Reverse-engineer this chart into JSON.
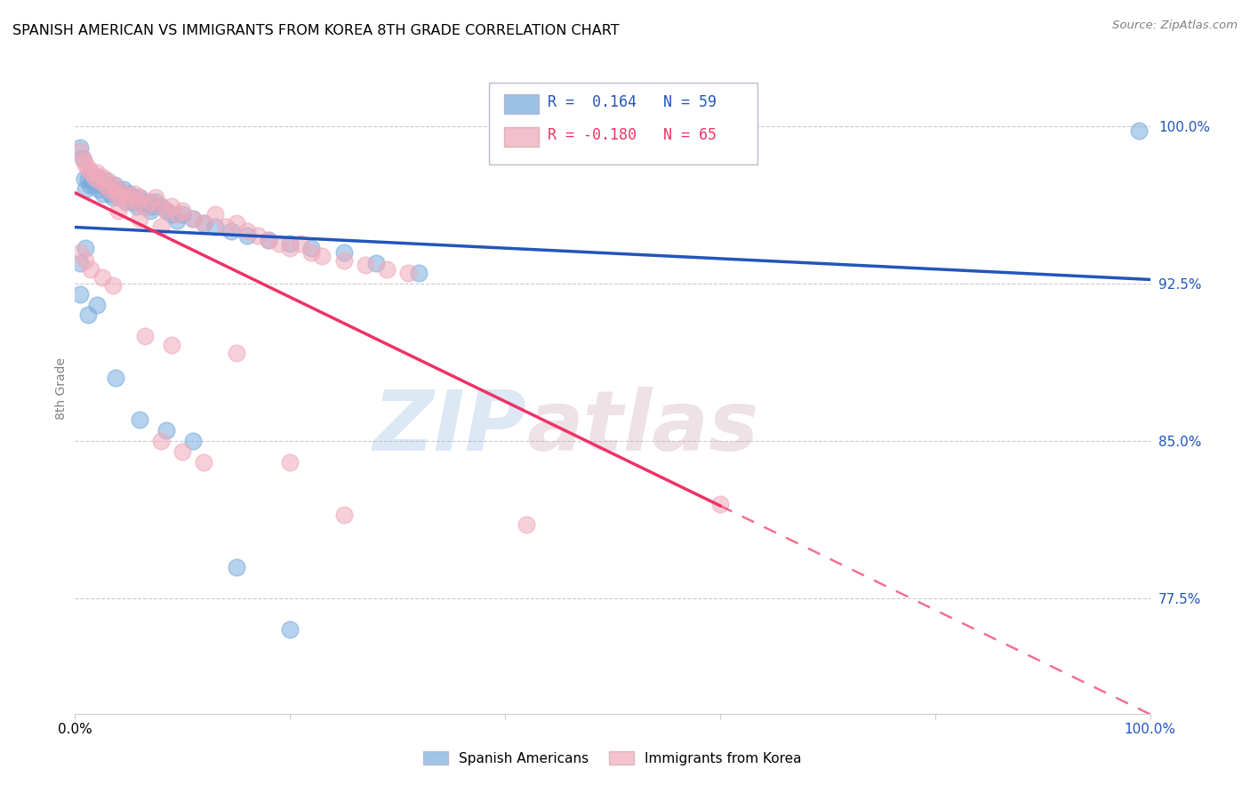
{
  "title": "SPANISH AMERICAN VS IMMIGRANTS FROM KOREA 8TH GRADE CORRELATION CHART",
  "source": "Source: ZipAtlas.com",
  "ylabel": "8th Grade",
  "xlim": [
    0.0,
    1.0
  ],
  "ylim": [
    0.72,
    1.03
  ],
  "yticks": [
    0.775,
    0.85,
    0.925,
    1.0
  ],
  "ytick_labels": [
    "77.5%",
    "85.0%",
    "92.5%",
    "100.0%"
  ],
  "xticks": [
    0.0,
    0.2,
    0.4,
    0.6,
    0.8,
    1.0
  ],
  "xtick_labels": [
    "0.0%",
    "",
    "",
    "",
    "",
    "100.0%"
  ],
  "blue_R": 0.164,
  "blue_N": 59,
  "pink_R": -0.18,
  "pink_N": 65,
  "blue_color": "#7aaddd",
  "pink_color": "#f0aabb",
  "blue_line_color": "#2255bb",
  "pink_line_color": "#ee3366",
  "watermark_zip": "ZIP",
  "watermark_atlas": "atlas",
  "blue_scatter_x": [
    0.005,
    0.007,
    0.009,
    0.01,
    0.012,
    0.014,
    0.015,
    0.016,
    0.018,
    0.02,
    0.022,
    0.024,
    0.025,
    0.026,
    0.028,
    0.03,
    0.031,
    0.033,
    0.034,
    0.035,
    0.037,
    0.038,
    0.04,
    0.041,
    0.043,
    0.045,
    0.046,
    0.048,
    0.05,
    0.052,
    0.054,
    0.056,
    0.058,
    0.06,
    0.063,
    0.065,
    0.068,
    0.07,
    0.072,
    0.075,
    0.08,
    0.085,
    0.09,
    0.095,
    0.1,
    0.11,
    0.12,
    0.13,
    0.145,
    0.16,
    0.18,
    0.2,
    0.22,
    0.25,
    0.28,
    0.32,
    0.005,
    0.01,
    0.99
  ],
  "blue_scatter_y": [
    0.99,
    0.985,
    0.975,
    0.97,
    0.975,
    0.972,
    0.978,
    0.974,
    0.972,
    0.976,
    0.97,
    0.974,
    0.972,
    0.968,
    0.974,
    0.97,
    0.972,
    0.968,
    0.97,
    0.966,
    0.972,
    0.968,
    0.97,
    0.966,
    0.968,
    0.97,
    0.966,
    0.964,
    0.968,
    0.966,
    0.964,
    0.966,
    0.962,
    0.966,
    0.964,
    0.962,
    0.964,
    0.96,
    0.962,
    0.964,
    0.962,
    0.96,
    0.958,
    0.955,
    0.958,
    0.956,
    0.954,
    0.952,
    0.95,
    0.948,
    0.946,
    0.944,
    0.942,
    0.94,
    0.935,
    0.93,
    0.935,
    0.942,
    0.998
  ],
  "blue_scatter_x2": [
    0.005,
    0.012,
    0.02,
    0.038,
    0.06,
    0.085,
    0.11,
    0.15,
    0.2
  ],
  "blue_scatter_y2": [
    0.92,
    0.91,
    0.915,
    0.88,
    0.86,
    0.855,
    0.85,
    0.79,
    0.76
  ],
  "pink_scatter_x": [
    0.005,
    0.008,
    0.01,
    0.012,
    0.015,
    0.018,
    0.02,
    0.022,
    0.025,
    0.028,
    0.03,
    0.032,
    0.035,
    0.038,
    0.04,
    0.042,
    0.045,
    0.048,
    0.05,
    0.055,
    0.058,
    0.06,
    0.065,
    0.07,
    0.075,
    0.08,
    0.085,
    0.09,
    0.095,
    0.1,
    0.11,
    0.12,
    0.13,
    0.14,
    0.15,
    0.16,
    0.17,
    0.18,
    0.19,
    0.2,
    0.21,
    0.22,
    0.23,
    0.25,
    0.27,
    0.29,
    0.31,
    0.04,
    0.06,
    0.08,
    0.005,
    0.01,
    0.015,
    0.025,
    0.035,
    0.6,
    0.065,
    0.09,
    0.15,
    0.2,
    0.08,
    0.1,
    0.12,
    0.25,
    0.42
  ],
  "pink_scatter_y": [
    0.988,
    0.984,
    0.982,
    0.98,
    0.978,
    0.976,
    0.978,
    0.974,
    0.976,
    0.972,
    0.974,
    0.97,
    0.972,
    0.968,
    0.97,
    0.966,
    0.968,
    0.964,
    0.966,
    0.968,
    0.964,
    0.966,
    0.962,
    0.964,
    0.966,
    0.962,
    0.96,
    0.962,
    0.958,
    0.96,
    0.956,
    0.954,
    0.958,
    0.952,
    0.954,
    0.95,
    0.948,
    0.946,
    0.944,
    0.942,
    0.944,
    0.94,
    0.938,
    0.936,
    0.934,
    0.932,
    0.93,
    0.96,
    0.956,
    0.952,
    0.94,
    0.936,
    0.932,
    0.928,
    0.924,
    0.82,
    0.9,
    0.896,
    0.892,
    0.84,
    0.85,
    0.845,
    0.84,
    0.815,
    0.81
  ]
}
